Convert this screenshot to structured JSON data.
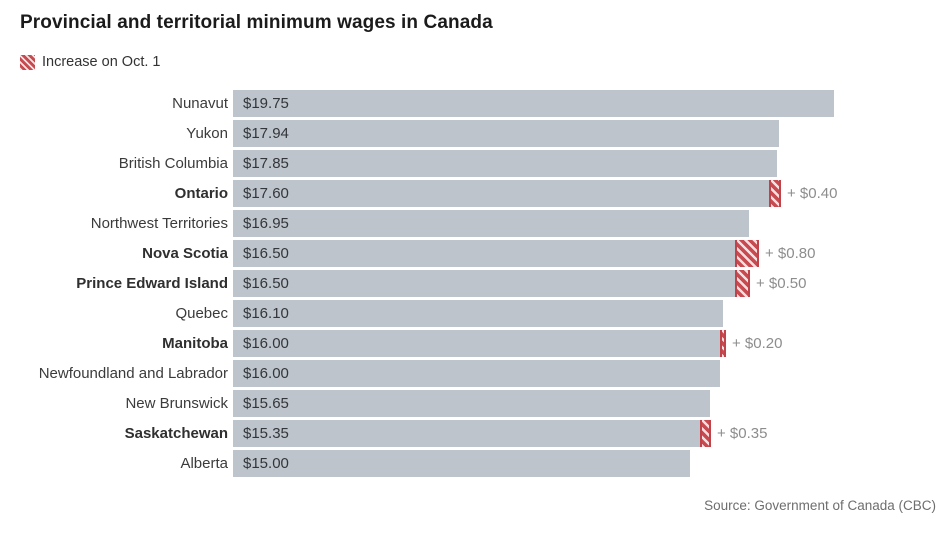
{
  "title": "Provincial and territorial minimum wages in Canada",
  "legend": {
    "label": "Increase on Oct. 1"
  },
  "source": "Source: Government of Canada (CBC)",
  "colors": {
    "bar": "#bdc4cb",
    "increase_red": "#c64a4f",
    "title_text": "#1b1b1b",
    "label_text": "#3b3b3b",
    "value_text": "#33363a",
    "increase_text": "#8d8d8d",
    "source_text": "#6e6e6e"
  },
  "chart_data": {
    "type": "bar",
    "orientation": "horizontal",
    "title": "Provincial and territorial minimum wages in Canada",
    "xlabel": "",
    "ylabel": "",
    "xlim": [
      0,
      19.75
    ],
    "grid": false,
    "legend_position": "top-left",
    "legend_entries": [
      "Increase on Oct. 1"
    ],
    "source": "Source: Government of Canada (CBC)",
    "bars": [
      {
        "label": "Nunavut",
        "value": 19.75,
        "value_label": "$19.75",
        "bold": false,
        "increase": null,
        "increase_label": null
      },
      {
        "label": "Yukon",
        "value": 17.94,
        "value_label": "$17.94",
        "bold": false,
        "increase": null,
        "increase_label": null
      },
      {
        "label": "British Columbia",
        "value": 17.85,
        "value_label": "$17.85",
        "bold": false,
        "increase": null,
        "increase_label": null
      },
      {
        "label": "Ontario",
        "value": 17.6,
        "value_label": "$17.60",
        "bold": true,
        "increase": 0.4,
        "increase_label": "+ $0.40"
      },
      {
        "label": "Northwest Territories",
        "value": 16.95,
        "value_label": "$16.95",
        "bold": false,
        "increase": null,
        "increase_label": null
      },
      {
        "label": "Nova Scotia",
        "value": 16.5,
        "value_label": "$16.50",
        "bold": true,
        "increase": 0.8,
        "increase_label": "+ $0.80"
      },
      {
        "label": "Prince Edward Island",
        "value": 16.5,
        "value_label": "$16.50",
        "bold": true,
        "increase": 0.5,
        "increase_label": "+ $0.50"
      },
      {
        "label": "Quebec",
        "value": 16.1,
        "value_label": "$16.10",
        "bold": false,
        "increase": null,
        "increase_label": null
      },
      {
        "label": "Manitoba",
        "value": 16.0,
        "value_label": "$16.00",
        "bold": true,
        "increase": 0.2,
        "increase_label": "+ $0.20"
      },
      {
        "label": "Newfoundland and Labrador",
        "value": 16.0,
        "value_label": "$16.00",
        "bold": false,
        "increase": null,
        "increase_label": null
      },
      {
        "label": "New Brunswick",
        "value": 15.65,
        "value_label": "$15.65",
        "bold": false,
        "increase": null,
        "increase_label": null
      },
      {
        "label": "Saskatchewan",
        "value": 15.35,
        "value_label": "$15.35",
        "bold": true,
        "increase": 0.35,
        "increase_label": "+ $0.35"
      },
      {
        "label": "Alberta",
        "value": 15.0,
        "value_label": "$15.00",
        "bold": false,
        "increase": null,
        "increase_label": null
      }
    ]
  }
}
